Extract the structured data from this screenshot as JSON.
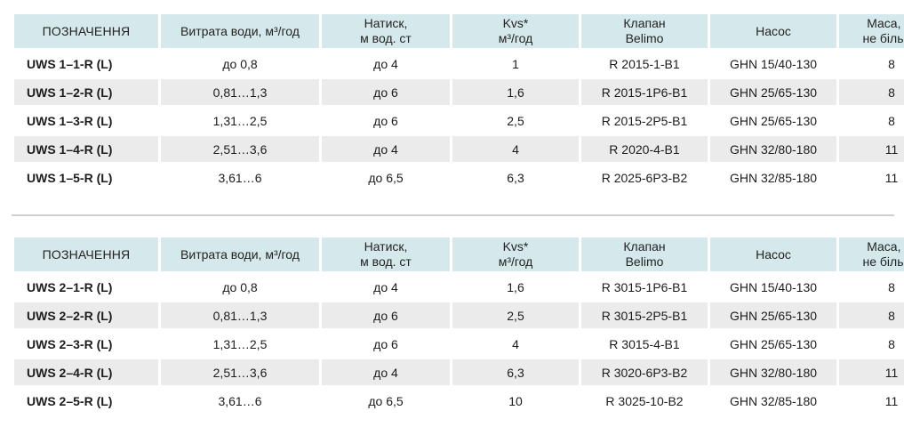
{
  "headers": [
    [
      "ПОЗНАЧЕННЯ"
    ],
    [
      "Витрата води, м³/год"
    ],
    [
      "Натиск,",
      "м вод. ст"
    ],
    [
      "Kvs*",
      "м³/год"
    ],
    [
      "Клапан",
      "Belimo"
    ],
    [
      "Насос"
    ],
    [
      "Маса, кг,",
      "не більше"
    ]
  ],
  "table1": {
    "rows": [
      [
        "UWS 1–1-R (L)",
        "до 0,8",
        "до 4",
        "1",
        "R 2015-1-B1",
        "GHN 15/40-130",
        "8"
      ],
      [
        "UWS 1–2-R (L)",
        "0,81…1,3",
        "до 6",
        "1,6",
        "R 2015-1P6-B1",
        "GHN 25/65-130",
        "8"
      ],
      [
        "UWS 1–3-R (L)",
        "1,31…2,5",
        "до 6",
        "2,5",
        "R 2015-2P5-B1",
        "GHN 25/65-130",
        "8"
      ],
      [
        "UWS 1–4-R (L)",
        "2,51…3,6",
        "до 4",
        "4",
        "R 2020-4-B1",
        "GHN 32/80-180",
        "11"
      ],
      [
        "UWS 1–5-R (L)",
        "3,61…6",
        "до 6,5",
        "6,3",
        "R 2025-6P3-B2",
        "GHN 32/85-180",
        "11"
      ]
    ]
  },
  "table2": {
    "rows": [
      [
        "UWS 2–1-R (L)",
        "до 0,8",
        "до 4",
        "1,6",
        "R 3015-1P6-B1",
        "GHN 15/40-130",
        "8"
      ],
      [
        "UWS 2–2-R (L)",
        "0,81…1,3",
        "до 6",
        "2,5",
        "R 3015-2P5-B1",
        "GHN 25/65-130",
        "8"
      ],
      [
        "UWS 2–3-R (L)",
        "1,31…2,5",
        "до 6",
        "4",
        "R 3015-4-B1",
        "GHN 25/65-130",
        "8"
      ],
      [
        "UWS 2–4-R (L)",
        "2,51…3,6",
        "до 4",
        "6,3",
        "R 3020-6P3-B2",
        "GHN 32/80-180",
        "11"
      ],
      [
        "UWS 2–5-R (L)",
        "3,61…6",
        "до 6,5",
        "10",
        "R 3025-10-B2",
        "GHN 32/85-180",
        "11"
      ]
    ]
  },
  "colors": {
    "header_bg": "#d5e9ec",
    "shade_bg": "#ebebeb",
    "separator": "#cfcfcf"
  }
}
